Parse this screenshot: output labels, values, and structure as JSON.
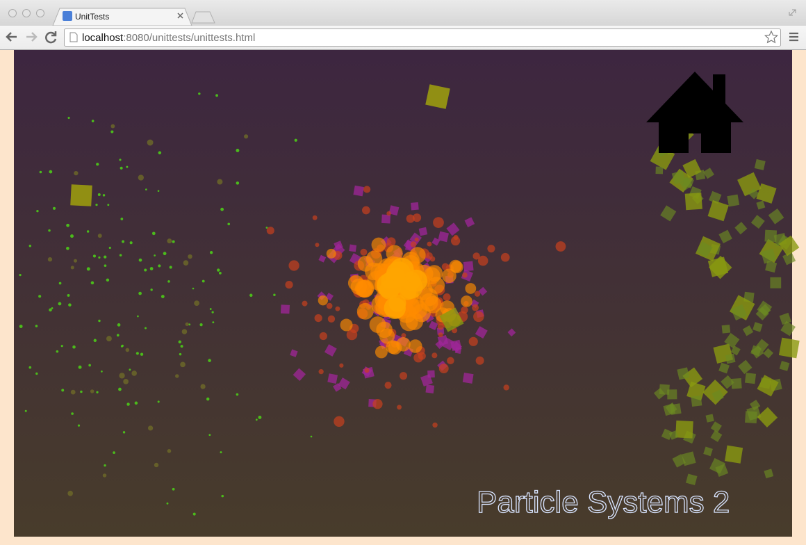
{
  "browser": {
    "tab_title": "UnitTests",
    "url": {
      "host": "localhost",
      "rest": ":8080/unittests/unittests.html"
    }
  },
  "canvas": {
    "caption": "Particle Systems 2"
  }
}
